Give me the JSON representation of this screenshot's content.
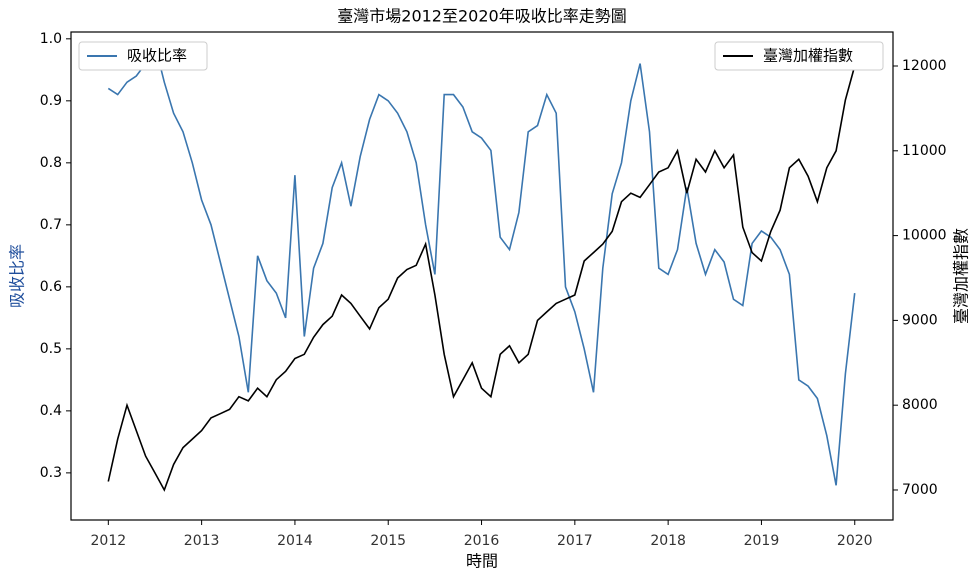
{
  "chart_data": {
    "type": "line",
    "title": "臺灣市場2012至2020年吸收比率走勢圖",
    "x_label": "時間",
    "y_label": "吸收比率",
    "y2_label": "臺灣加權指數",
    "y_label_color": "#1f4e9c",
    "xlim": [
      2011.6,
      2020.41
    ],
    "xticks": [
      2012,
      2013,
      2014,
      2015,
      2016,
      2017,
      2018,
      2019,
      2020
    ],
    "ylim": [
      0.224,
      1.011
    ],
    "yticks": [
      0.3,
      0.4,
      0.5,
      0.6,
      0.7,
      0.8,
      0.9,
      {
        "value": 1,
        "label": "1.0"
      }
    ],
    "y2lim": [
      6646,
      12401
    ],
    "y2ticks": [
      7000,
      8000,
      9000,
      10000,
      11000,
      12000
    ],
    "x": [
      2012.0,
      2012.1,
      2012.2,
      2012.3,
      2012.4,
      2012.5,
      2012.6,
      2012.7,
      2012.8,
      2012.9,
      2013.0,
      2013.1,
      2013.2,
      2013.3,
      2013.4,
      2013.5,
      2013.6,
      2013.7,
      2013.8,
      2013.9,
      2014.0,
      2014.1,
      2014.2,
      2014.3,
      2014.4,
      2014.5,
      2014.6,
      2014.7,
      2014.8,
      2014.9,
      2015.0,
      2015.1,
      2015.2,
      2015.3,
      2015.4,
      2015.5,
      2015.6,
      2015.7,
      2015.8,
      2015.9,
      2016.0,
      2016.1,
      2016.2,
      2016.3,
      2016.4,
      2016.5,
      2016.6,
      2016.7,
      2016.8,
      2016.9,
      2017.0,
      2017.1,
      2017.2,
      2017.3,
      2017.4,
      2017.5,
      2017.6,
      2017.7,
      2017.8,
      2017.9,
      2018.0,
      2018.1,
      2018.2,
      2018.3,
      2018.4,
      2018.5,
      2018.6,
      2018.7,
      2018.8,
      2018.9,
      2019.0,
      2019.1,
      2019.2,
      2019.3,
      2019.4,
      2019.5,
      2019.6,
      2019.7,
      2019.8,
      2019.9,
      2020.0
    ],
    "series": [
      {
        "name": "吸收比率",
        "color": "#3a76af",
        "legend": "upper left",
        "values": [
          0.92,
          0.91,
          0.93,
          0.94,
          0.96,
          0.99,
          0.93,
          0.88,
          0.85,
          0.8,
          0.74,
          0.7,
          0.64,
          0.58,
          0.52,
          0.43,
          0.65,
          0.61,
          0.59,
          0.55,
          0.78,
          0.52,
          0.63,
          0.67,
          0.76,
          0.8,
          0.73,
          0.81,
          0.87,
          0.91,
          0.9,
          0.88,
          0.85,
          0.8,
          0.7,
          0.62,
          0.91,
          0.91,
          0.89,
          0.85,
          0.84,
          0.82,
          0.68,
          0.66,
          0.72,
          0.85,
          0.86,
          0.91,
          0.88,
          0.6,
          0.56,
          0.5,
          0.43,
          0.63,
          0.75,
          0.8,
          0.9,
          0.96,
          0.85,
          0.63,
          0.62,
          0.66,
          0.76,
          0.67,
          0.62,
          0.66,
          0.64,
          0.58,
          0.57,
          0.67,
          0.69,
          0.68,
          0.66,
          0.62,
          0.45,
          0.44,
          0.42,
          0.36,
          0.28,
          0.46,
          0.59
        ]
      },
      {
        "name": "臺灣加權指數",
        "color": "#000000",
        "legend": "upper right",
        "axis": "y2",
        "values": [
          7100,
          7600,
          8000,
          7700,
          7400,
          7200,
          7000,
          7300,
          7500,
          7600,
          7700,
          7850,
          7900,
          7950,
          8100,
          8050,
          8200,
          8100,
          8300,
          8400,
          8550,
          8600,
          8800,
          8950,
          9050,
          9300,
          9200,
          9050,
          8900,
          9150,
          9250,
          9500,
          9600,
          9650,
          9900,
          9300,
          8600,
          8100,
          8300,
          8500,
          8200,
          8100,
          8600,
          8700,
          8500,
          8600,
          9000,
          9100,
          9200,
          9250,
          9300,
          9700,
          9800,
          9900,
          10050,
          10400,
          10500,
          10450,
          10600,
          10750,
          10800,
          11000,
          10500,
          10900,
          10750,
          11000,
          10800,
          10950,
          10100,
          9800,
          9700,
          10050,
          10300,
          10800,
          10900,
          10700,
          10400,
          10800,
          11000,
          11600,
          12000
        ]
      }
    ]
  }
}
